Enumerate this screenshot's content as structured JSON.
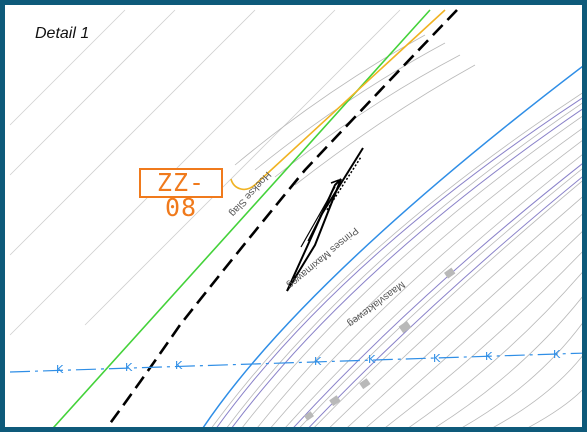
{
  "detail": {
    "label": "Detail 1"
  },
  "tag": {
    "code": "ZZ-08"
  },
  "streets": {
    "hoekse_slag": "Hoekse Slag",
    "prinses_maximaweg": "Prinses Maximaweg",
    "maasvlakteweg": "Maasvlakteweg"
  },
  "boundary_marker": "K",
  "colors": {
    "frame": "#0e5a7a",
    "tag": "#f07a1c",
    "orange_line": "#f0b323",
    "green_line": "#44d23a",
    "blue_line": "#2f8ee6",
    "purple_lines": "#8a82c9",
    "grey_lines": "#b9b9b9",
    "dashed_boundary": "#000000"
  }
}
